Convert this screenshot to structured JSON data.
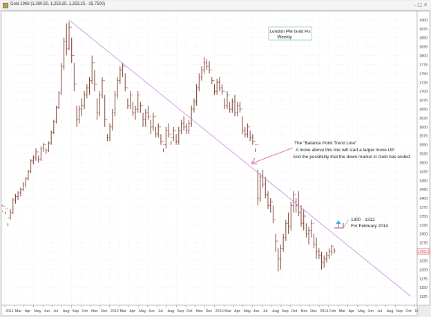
{
  "window": {
    "title": "Gold   1968 (1,260.50, 1,253.25, 1,253.25, -15.7500)",
    "buttons": "– □ ×"
  },
  "chart_data": {
    "type": "ohlc",
    "title": "London PM Gold Fix",
    "subtitle": "Weekly",
    "price_badge": "1253.2",
    "ylim": [
      1100,
      1925
    ],
    "yticks": [
      1125,
      1150,
      1175,
      1200,
      1225,
      1250,
      1275,
      1300,
      1325,
      1350,
      1375,
      1400,
      1425,
      1450,
      1475,
      1500,
      1525,
      1550,
      1575,
      1600,
      1625,
      1650,
      1675,
      1700,
      1725,
      1750,
      1775,
      1800,
      1825,
      1850,
      1875,
      1900
    ],
    "xticks": [
      "2011",
      "Mar",
      "Apr",
      "May",
      "Jun",
      "Jul",
      "Aug",
      "Sep",
      "Oct",
      "Nov",
      "Dec",
      "2012",
      "Mar",
      "Apr",
      "May",
      "Jun",
      "Jul",
      "Aug",
      "Sep",
      "Oct",
      "Nov",
      "Dec",
      "2013",
      "Mar",
      "Apr",
      "May",
      "Jun",
      "Jul",
      "Aug",
      "Sep",
      "Oct",
      "Nov",
      "Dec",
      "2014",
      "Feb",
      "Mar",
      "Apr",
      "May",
      "Jun",
      "Jul",
      "Aug",
      "Sep",
      "Oct",
      "N"
    ],
    "weeks": [
      [
        1380,
        1365,
        1362,
        1378
      ],
      [
        1378,
        1362,
        1355,
        1370
      ],
      [
        1370,
        1330,
        1322,
        1345
      ],
      [
        1345,
        1370,
        1340,
        1360
      ],
      [
        1360,
        1400,
        1355,
        1395
      ],
      [
        1395,
        1412,
        1385,
        1405
      ],
      [
        1405,
        1420,
        1395,
        1415
      ],
      [
        1415,
        1430,
        1405,
        1425
      ],
      [
        1425,
        1445,
        1420,
        1440
      ],
      [
        1440,
        1460,
        1430,
        1455
      ],
      [
        1455,
        1480,
        1450,
        1475
      ],
      [
        1475,
        1510,
        1470,
        1505
      ],
      [
        1505,
        1520,
        1495,
        1515
      ],
      [
        1515,
        1540,
        1505,
        1530
      ],
      [
        1530,
        1520,
        1500,
        1510
      ],
      [
        1510,
        1545,
        1505,
        1540
      ],
      [
        1540,
        1555,
        1530,
        1550
      ],
      [
        1550,
        1540,
        1525,
        1535
      ],
      [
        1535,
        1560,
        1530,
        1555
      ],
      [
        1555,
        1590,
        1550,
        1585
      ],
      [
        1585,
        1620,
        1580,
        1615
      ],
      [
        1615,
        1660,
        1610,
        1655
      ],
      [
        1655,
        1700,
        1650,
        1695
      ],
      [
        1695,
        1780,
        1690,
        1770
      ],
      [
        1770,
        1850,
        1760,
        1840
      ],
      [
        1840,
        1890,
        1800,
        1820
      ],
      [
        1820,
        1895,
        1815,
        1880
      ],
      [
        1880,
        1850,
        1780,
        1800
      ],
      [
        1800,
        1780,
        1700,
        1720
      ],
      [
        1720,
        1660,
        1600,
        1620
      ],
      [
        1620,
        1660,
        1610,
        1650
      ],
      [
        1650,
        1680,
        1630,
        1660
      ],
      [
        1660,
        1700,
        1650,
        1690
      ],
      [
        1690,
        1720,
        1680,
        1710
      ],
      [
        1710,
        1740,
        1690,
        1730
      ],
      [
        1730,
        1800,
        1720,
        1780
      ],
      [
        1780,
        1760,
        1700,
        1720
      ],
      [
        1720,
        1680,
        1620,
        1640
      ],
      [
        1640,
        1700,
        1630,
        1690
      ],
      [
        1690,
        1740,
        1680,
        1730
      ],
      [
        1730,
        1690,
        1600,
        1620
      ],
      [
        1620,
        1580,
        1560,
        1570
      ],
      [
        1570,
        1610,
        1560,
        1600
      ],
      [
        1600,
        1650,
        1590,
        1640
      ],
      [
        1640,
        1700,
        1630,
        1690
      ],
      [
        1690,
        1740,
        1680,
        1730
      ],
      [
        1730,
        1770,
        1720,
        1760
      ],
      [
        1760,
        1780,
        1740,
        1770
      ],
      [
        1770,
        1750,
        1700,
        1710
      ],
      [
        1710,
        1680,
        1650,
        1660
      ],
      [
        1660,
        1700,
        1650,
        1690
      ],
      [
        1690,
        1670,
        1630,
        1640
      ],
      [
        1640,
        1660,
        1620,
        1650
      ],
      [
        1650,
        1700,
        1640,
        1690
      ],
      [
        1690,
        1670,
        1640,
        1660
      ],
      [
        1660,
        1640,
        1600,
        1620
      ],
      [
        1620,
        1650,
        1600,
        1640
      ],
      [
        1640,
        1660,
        1620,
        1630
      ],
      [
        1630,
        1620,
        1580,
        1600
      ],
      [
        1600,
        1640,
        1590,
        1630
      ],
      [
        1630,
        1600,
        1570,
        1580
      ],
      [
        1580,
        1610,
        1570,
        1600
      ],
      [
        1600,
        1580,
        1550,
        1560
      ],
      [
        1560,
        1540,
        1530,
        1550
      ],
      [
        1550,
        1600,
        1540,
        1590
      ],
      [
        1590,
        1610,
        1570,
        1580
      ],
      [
        1580,
        1560,
        1550,
        1570
      ],
      [
        1570,
        1600,
        1560,
        1590
      ],
      [
        1590,
        1580,
        1550,
        1560
      ],
      [
        1560,
        1600,
        1550,
        1590
      ],
      [
        1590,
        1620,
        1580,
        1610
      ],
      [
        1610,
        1630,
        1590,
        1600
      ],
      [
        1600,
        1610,
        1580,
        1590
      ],
      [
        1590,
        1620,
        1580,
        1610
      ],
      [
        1610,
        1660,
        1600,
        1650
      ],
      [
        1650,
        1680,
        1640,
        1670
      ],
      [
        1670,
        1720,
        1660,
        1710
      ],
      [
        1710,
        1750,
        1700,
        1740
      ],
      [
        1740,
        1770,
        1730,
        1760
      ],
      [
        1760,
        1795,
        1750,
        1780
      ],
      [
        1780,
        1790,
        1760,
        1770
      ],
      [
        1770,
        1785,
        1750,
        1760
      ],
      [
        1760,
        1740,
        1720,
        1730
      ],
      [
        1730,
        1720,
        1690,
        1700
      ],
      [
        1700,
        1735,
        1690,
        1725
      ],
      [
        1725,
        1740,
        1700,
        1710
      ],
      [
        1710,
        1720,
        1690,
        1700
      ],
      [
        1700,
        1680,
        1650,
        1660
      ],
      [
        1660,
        1700,
        1650,
        1690
      ],
      [
        1690,
        1670,
        1640,
        1650
      ],
      [
        1650,
        1680,
        1640,
        1670
      ],
      [
        1670,
        1690,
        1630,
        1640
      ],
      [
        1640,
        1670,
        1630,
        1660
      ],
      [
        1660,
        1670,
        1640,
        1650
      ],
      [
        1650,
        1630,
        1580,
        1590
      ],
      [
        1590,
        1600,
        1570,
        1580
      ],
      [
        1580,
        1610,
        1570,
        1600
      ],
      [
        1600,
        1590,
        1560,
        1570
      ],
      [
        1570,
        1580,
        1550,
        1560
      ],
      [
        1560,
        1540,
        1530,
        1550
      ],
      [
        1550,
        1480,
        1380,
        1400
      ],
      [
        1400,
        1470,
        1390,
        1460
      ],
      [
        1460,
        1480,
        1430,
        1440
      ],
      [
        1440,
        1460,
        1400,
        1410
      ],
      [
        1410,
        1420,
        1370,
        1380
      ],
      [
        1380,
        1400,
        1360,
        1390
      ],
      [
        1390,
        1380,
        1330,
        1340
      ],
      [
        1340,
        1300,
        1250,
        1280
      ],
      [
        1280,
        1260,
        1195,
        1230
      ],
      [
        1230,
        1270,
        1200,
        1260
      ],
      [
        1260,
        1300,
        1250,
        1290
      ],
      [
        1290,
        1340,
        1280,
        1330
      ],
      [
        1330,
        1360,
        1300,
        1320
      ],
      [
        1320,
        1390,
        1310,
        1380
      ],
      [
        1380,
        1420,
        1360,
        1410
      ],
      [
        1410,
        1400,
        1360,
        1380
      ],
      [
        1380,
        1420,
        1350,
        1360
      ],
      [
        1360,
        1380,
        1320,
        1330
      ],
      [
        1330,
        1370,
        1310,
        1350
      ],
      [
        1350,
        1330,
        1290,
        1300
      ],
      [
        1300,
        1320,
        1270,
        1310
      ],
      [
        1310,
        1340,
        1290,
        1330
      ],
      [
        1330,
        1300,
        1260,
        1270
      ],
      [
        1270,
        1290,
        1230,
        1250
      ],
      [
        1250,
        1260,
        1230,
        1240
      ],
      [
        1240,
        1250,
        1200,
        1220
      ],
      [
        1220,
        1240,
        1205,
        1230
      ],
      [
        1230,
        1250,
        1220,
        1240
      ],
      [
        1240,
        1260,
        1230,
        1250
      ],
      [
        1250,
        1270,
        1240,
        1265
      ],
      [
        1265,
        1260,
        1245,
        1253
      ]
    ],
    "trend_line": {
      "start": [
        26,
        1900
      ],
      "end": [
        160,
        1125
      ]
    },
    "annotations": {
      "balance_title": "The \"Balance Point Trend Line\"",
      "balance_line1": "A move above this line will start a larger move UP.",
      "balance_line2": "And the possibility that the down market in Gold has ended.",
      "target_line1": "1300 - 1312",
      "target_line2": "For February 2014"
    },
    "colors": {
      "bars": "#7a3a2a",
      "trend": "#c080e0",
      "arrow": "#e040a0",
      "target_box": "#cc2255",
      "up_arrow": "#22aadd"
    }
  }
}
